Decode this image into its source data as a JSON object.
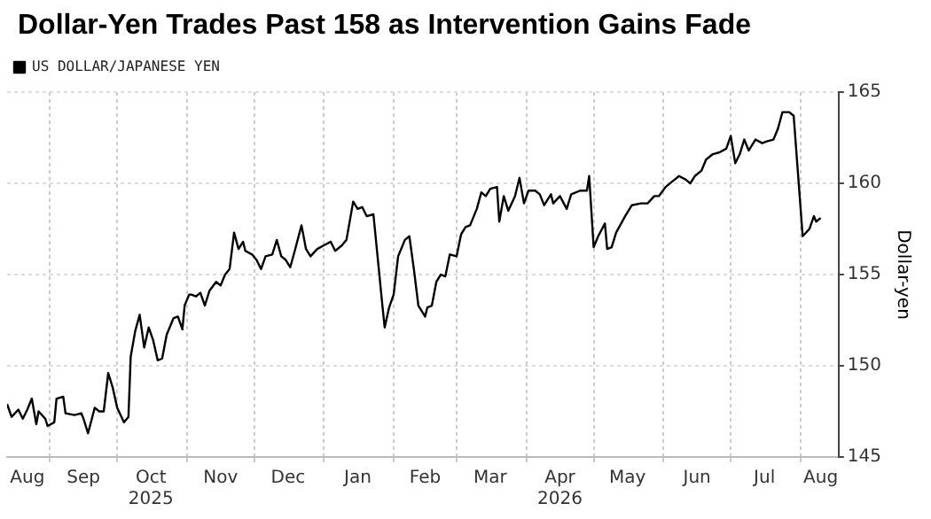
{
  "chart_data": {
    "type": "line",
    "title": "Dollar-Yen Trades Past 158 as Intervention Gains Fade",
    "ylabel": "Dollar-yen",
    "legend": "top left",
    "grid": true,
    "marker": "none",
    "line_style": "solid",
    "xlim": [
      "2025-08-13",
      "2026-08-18"
    ],
    "xticks": [
      {
        "value": "2025-08-22",
        "label": "Aug"
      },
      {
        "value": "2025-09-01",
        "label": null
      },
      {
        "value": "2025-09-16",
        "label": "Sep"
      },
      {
        "value": "2025-10-01",
        "label": null
      },
      {
        "value": "2025-10-16",
        "label": "Oct\n2025"
      },
      {
        "value": "2025-11-01",
        "label": null
      },
      {
        "value": "2025-11-16",
        "label": "Nov"
      },
      {
        "value": "2025-12-01",
        "label": null
      },
      {
        "value": "2025-12-16",
        "label": "Dec"
      },
      {
        "value": "2026-01-01",
        "label": null
      },
      {
        "value": "2026-01-16",
        "label": "Jan"
      },
      {
        "value": "2026-02-01",
        "label": null
      },
      {
        "value": "2026-02-15",
        "label": "Feb"
      },
      {
        "value": "2026-03-01",
        "label": null
      },
      {
        "value": "2026-03-16",
        "label": "Mar"
      },
      {
        "value": "2026-04-01",
        "label": null
      },
      {
        "value": "2026-04-16",
        "label": "Apr\n2026"
      },
      {
        "value": "2026-05-01",
        "label": null
      },
      {
        "value": "2026-05-16",
        "label": "May"
      },
      {
        "value": "2026-06-01",
        "label": null
      },
      {
        "value": "2026-06-16",
        "label": "Jun"
      },
      {
        "value": "2026-07-01",
        "label": null
      },
      {
        "value": "2026-07-16",
        "label": "Jul"
      },
      {
        "value": "2026-08-01",
        "label": null
      },
      {
        "value": "2026-08-10",
        "label": "Aug"
      }
    ],
    "ylim": [
      145,
      165
    ],
    "yticks": [
      145,
      150,
      155,
      160,
      165
    ],
    "series": [
      {
        "name": "US DOLLAR/JAPANESE YEN",
        "color": "#000000",
        "x": [
          "2025-08-13",
          "2025-08-15",
          "2025-08-18",
          "2025-08-20",
          "2025-08-22",
          "2025-08-24",
          "2025-08-26",
          "2025-08-27",
          "2025-08-30",
          "2025-08-31",
          "2025-09-03",
          "2025-09-04",
          "2025-09-07",
          "2025-09-08",
          "2025-09-12",
          "2025-09-15",
          "2025-09-16",
          "2025-09-18",
          "2025-09-21",
          "2025-09-23",
          "2025-09-25",
          "2025-09-27",
          "2025-09-29",
          "2025-10-01",
          "2025-10-04",
          "2025-10-06",
          "2025-10-07",
          "2025-10-09",
          "2025-10-11",
          "2025-10-13",
          "2025-10-15",
          "2025-10-17",
          "2025-10-19",
          "2025-10-21",
          "2025-10-23",
          "2025-10-26",
          "2025-10-28",
          "2025-10-30",
          "2025-10-31",
          "2025-11-02",
          "2025-11-03",
          "2025-11-05",
          "2025-11-07",
          "2025-11-09",
          "2025-11-11",
          "2025-11-14",
          "2025-11-16",
          "2025-11-18",
          "2025-11-20",
          "2025-11-22",
          "2025-11-24",
          "2025-11-26",
          "2025-11-27",
          "2025-11-30",
          "2025-12-02",
          "2025-12-04",
          "2025-12-06",
          "2025-12-09",
          "2025-12-11",
          "2025-12-13",
          "2025-12-15",
          "2025-12-17",
          "2025-12-19",
          "2025-12-22",
          "2025-12-24",
          "2025-12-26",
          "2025-12-29",
          "2026-01-01",
          "2026-01-04",
          "2026-01-06",
          "2026-01-09",
          "2026-01-11",
          "2026-01-14",
          "2026-01-16",
          "2026-01-18",
          "2026-01-20",
          "2026-01-23",
          "2026-01-27",
          "2026-01-28",
          "2026-01-30",
          "2026-02-01",
          "2026-02-03",
          "2026-02-06",
          "2026-02-08",
          "2026-02-10",
          "2026-02-12",
          "2026-02-15",
          "2026-02-16",
          "2026-02-18",
          "2026-02-20",
          "2026-02-22",
          "2026-02-24",
          "2026-02-26",
          "2026-03-01",
          "2026-03-03",
          "2026-03-05",
          "2026-03-07",
          "2026-03-10",
          "2026-03-12",
          "2026-03-14",
          "2026-03-16",
          "2026-03-19",
          "2026-03-20",
          "2026-03-22",
          "2026-03-24",
          "2026-03-27",
          "2026-03-29",
          "2026-03-31",
          "2026-04-02",
          "2026-04-05",
          "2026-04-07",
          "2026-04-09",
          "2026-04-12",
          "2026-04-13",
          "2026-04-16",
          "2026-04-19",
          "2026-04-21",
          "2026-04-25",
          "2026-04-28",
          "2026-04-29",
          "2026-05-01",
          "2026-05-03",
          "2026-05-06",
          "2026-05-07",
          "2026-05-09",
          "2026-05-11",
          "2026-05-15",
          "2026-05-18",
          "2026-05-22",
          "2026-05-25",
          "2026-05-28",
          "2026-05-30",
          "2026-06-02",
          "2026-06-05",
          "2026-06-08",
          "2026-06-11",
          "2026-06-13",
          "2026-06-15",
          "2026-06-18",
          "2026-06-20",
          "2026-06-23",
          "2026-06-26",
          "2026-06-29",
          "2026-07-01",
          "2026-07-03",
          "2026-07-05",
          "2026-07-07",
          "2026-07-09",
          "2026-07-12",
          "2026-07-15",
          "2026-07-17",
          "2026-07-20",
          "2026-07-22",
          "2026-07-24",
          "2026-07-27",
          "2026-07-29",
          "2026-08-02",
          "2026-08-05",
          "2026-08-07",
          "2026-08-08",
          "2026-08-10"
        ],
        "values": [
          147.9,
          147.2,
          147.6,
          147.1,
          147.6,
          148.2,
          146.8,
          147.5,
          147.1,
          146.7,
          146.9,
          148.2,
          148.3,
          147.4,
          147.3,
          147.4,
          147.1,
          146.3,
          147.7,
          147.5,
          147.5,
          149.6,
          148.8,
          147.7,
          146.9,
          147.2,
          150.5,
          151.9,
          152.8,
          151.0,
          152.1,
          151.4,
          150.3,
          150.4,
          151.7,
          152.6,
          152.7,
          152.0,
          153.3,
          153.9,
          153.9,
          153.8,
          154.0,
          153.3,
          154.1,
          154.6,
          154.4,
          155.0,
          155.3,
          157.3,
          156.4,
          156.8,
          156.3,
          156.1,
          155.8,
          155.3,
          156.0,
          156.1,
          156.9,
          156.0,
          155.8,
          155.4,
          156.3,
          157.7,
          156.4,
          156.0,
          156.4,
          156.6,
          156.8,
          156.3,
          156.6,
          156.9,
          159.0,
          158.6,
          158.7,
          158.2,
          158.3,
          153.3,
          152.1,
          153.2,
          153.9,
          156.0,
          156.9,
          157.1,
          155.3,
          153.3,
          152.7,
          153.2,
          153.3,
          154.6,
          155.0,
          154.9,
          156.1,
          156.0,
          157.2,
          157.6,
          157.7,
          158.6,
          159.5,
          159.3,
          159.7,
          159.8,
          157.9,
          159.3,
          158.5,
          159.3,
          160.3,
          158.9,
          159.6,
          159.6,
          159.4,
          158.8,
          159.4,
          158.9,
          159.3,
          158.6,
          159.4,
          159.6,
          159.6,
          160.4,
          156.5,
          157.1,
          157.8,
          156.4,
          156.5,
          157.3,
          158.2,
          158.8,
          158.9,
          158.9,
          159.3,
          159.3,
          159.8,
          160.1,
          160.4,
          160.2,
          160.0,
          160.4,
          160.7,
          161.3,
          161.6,
          161.7,
          161.9,
          162.6,
          161.1,
          161.6,
          162.4,
          161.8,
          162.4,
          162.2,
          162.3,
          162.4,
          163.0,
          163.9,
          163.9,
          163.7,
          157.1,
          157.5,
          158.2,
          157.9,
          158.1
        ]
      }
    ]
  }
}
